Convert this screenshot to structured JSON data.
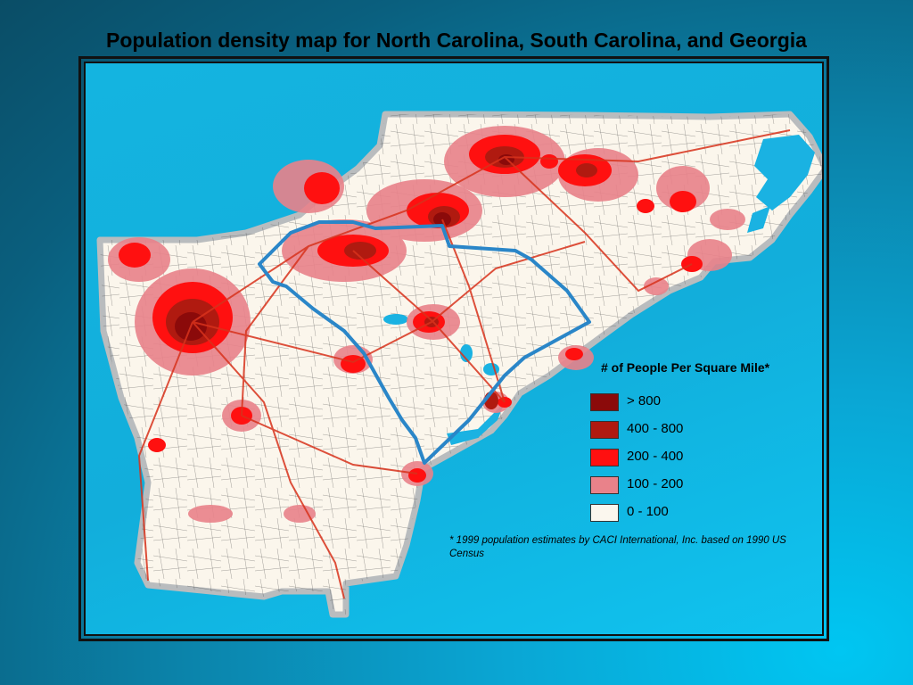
{
  "title": "Population density map for North Carolina, South Carolina, and Georgia",
  "legend": {
    "title": "# of People Per Square Mile*",
    "items": [
      {
        "label": "> 800",
        "color": "#8b0a0a"
      },
      {
        "label": "400 - 800",
        "color": "#b01a10"
      },
      {
        "label": "200 - 400",
        "color": "#ff1010"
      },
      {
        "label": "100 - 200",
        "color": "#e9828a"
      },
      {
        "label": "0 - 100",
        "color": "#fbf7ee"
      }
    ]
  },
  "footnote": "* 1999 population estimates by CACI International, Inc. based on 1990 US Census",
  "colors": {
    "land": "#fbf6ec",
    "border_gray": "#b9bcbe",
    "water": "#1ab2e2",
    "highlight_outline": "#2a86c8",
    "roads": "#d8321c"
  }
}
